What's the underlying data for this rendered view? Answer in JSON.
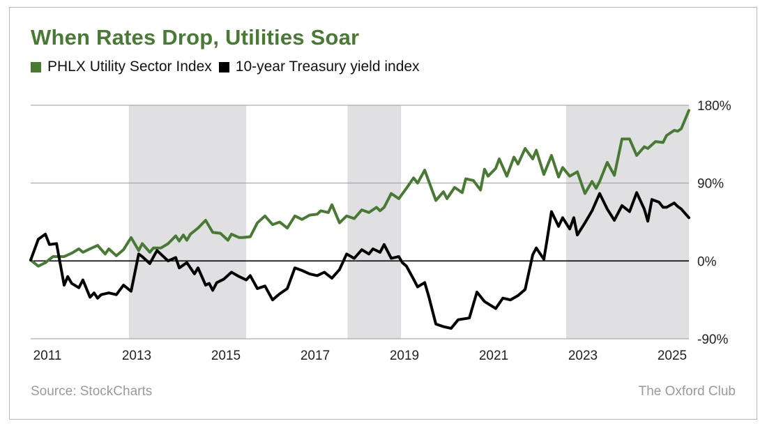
{
  "chart_data": {
    "type": "line",
    "title": "When Rates Drop, Utilities Soar",
    "ylim": [
      -90,
      180
    ],
    "xlim": [
      2011,
      2025.75
    ],
    "y_ticks": [
      "180%",
      "90%",
      "0%",
      "-90%"
    ],
    "y_tick_values": [
      180,
      90,
      0,
      -90
    ],
    "x_ticks": [
      "2011",
      "2013",
      "2015",
      "2017",
      "2019",
      "2021",
      "2023",
      "2025"
    ],
    "x_tick_values": [
      2011,
      2013,
      2015,
      2017,
      2019,
      2021,
      2023,
      2025
    ],
    "shaded_periods": [
      [
        2013.2,
        2015.83
      ],
      [
        2018.1,
        2019.3
      ],
      [
        2023.0,
        2025.75
      ]
    ],
    "series": [
      {
        "name": "PHLX Utility Sector Index",
        "color": "#487a34",
        "x": [
          2011.0,
          2011.17,
          2011.33,
          2011.5,
          2011.58,
          2011.75,
          2011.92,
          2012.08,
          2012.17,
          2012.33,
          2012.5,
          2012.67,
          2012.75,
          2012.92,
          2013.08,
          2013.25,
          2013.42,
          2013.5,
          2013.67,
          2013.75,
          2013.92,
          2014.08,
          2014.25,
          2014.33,
          2014.42,
          2014.5,
          2014.58,
          2014.75,
          2014.92,
          2015.08,
          2015.25,
          2015.42,
          2015.5,
          2015.67,
          2015.75,
          2015.92,
          2016.08,
          2016.25,
          2016.42,
          2016.58,
          2016.75,
          2016.92,
          2017.08,
          2017.25,
          2017.42,
          2017.5,
          2017.67,
          2017.75,
          2017.92,
          2018.08,
          2018.25,
          2018.42,
          2018.58,
          2018.75,
          2018.83,
          2018.92,
          2019.08,
          2019.25,
          2019.42,
          2019.58,
          2019.67,
          2019.83,
          2020.08,
          2020.25,
          2020.33,
          2020.5,
          2020.67,
          2020.75,
          2020.92,
          2021.08,
          2021.17,
          2021.25,
          2021.42,
          2021.5,
          2021.67,
          2021.83,
          2021.92,
          2022.08,
          2022.25,
          2022.33,
          2022.5,
          2022.67,
          2022.83,
          2022.92,
          2023.08,
          2023.25,
          2023.42,
          2023.58,
          2023.67,
          2023.75,
          2023.92,
          2024.08,
          2024.25,
          2024.42,
          2024.58,
          2024.75,
          2024.83,
          2025.0,
          2025.17,
          2025.25,
          2025.42,
          2025.5,
          2025.58,
          2025.75
        ],
        "values": [
          1,
          -6,
          -2,
          5,
          5,
          5,
          9,
          14,
          10,
          14,
          18,
          8,
          14,
          6,
          13,
          27,
          12,
          20,
          10,
          15,
          15,
          20,
          29,
          23,
          30,
          24,
          31,
          38,
          47,
          33,
          32,
          24,
          31,
          27,
          27,
          28,
          44,
          52,
          42,
          45,
          38,
          52,
          48,
          53,
          54,
          58,
          56,
          65,
          44,
          52,
          49,
          59,
          56,
          62,
          58,
          62,
          78,
          72,
          84,
          96,
          90,
          105,
          70,
          80,
          72,
          85,
          79,
          95,
          93,
          82,
          106,
          98,
          107,
          118,
          98,
          120,
          112,
          130,
          118,
          128,
          100,
          122,
          97,
          108,
          98,
          103,
          78,
          92,
          84,
          92,
          114,
          99,
          141,
          141,
          122,
          132,
          130,
          138,
          137,
          145,
          151,
          150,
          153,
          174
        ]
      },
      {
        "name": "10-year Treasury yield index",
        "color": "#000000",
        "x": [
          2011.0,
          2011.17,
          2011.33,
          2011.42,
          2011.58,
          2011.75,
          2011.83,
          2011.92,
          2012.08,
          2012.17,
          2012.33,
          2012.42,
          2012.5,
          2012.58,
          2012.75,
          2012.92,
          2013.08,
          2013.25,
          2013.42,
          2013.5,
          2013.67,
          2013.83,
          2014.08,
          2014.25,
          2014.33,
          2014.5,
          2014.67,
          2014.75,
          2014.92,
          2015.0,
          2015.08,
          2015.17,
          2015.33,
          2015.5,
          2015.67,
          2015.83,
          2015.92,
          2016.08,
          2016.25,
          2016.42,
          2016.58,
          2016.75,
          2016.92,
          2017.08,
          2017.25,
          2017.42,
          2017.58,
          2017.75,
          2017.92,
          2018.08,
          2018.25,
          2018.42,
          2018.58,
          2018.67,
          2018.83,
          2018.92,
          2019.08,
          2019.25,
          2019.33,
          2019.42,
          2019.58,
          2019.67,
          2019.83,
          2019.92,
          2020.08,
          2020.25,
          2020.42,
          2020.58,
          2020.83,
          2021.0,
          2021.17,
          2021.42,
          2021.58,
          2021.75,
          2021.92,
          2022.08,
          2022.25,
          2022.33,
          2022.5,
          2022.58,
          2022.67,
          2022.83,
          2022.92,
          2023.08,
          2023.17,
          2023.25,
          2023.42,
          2023.58,
          2023.75,
          2023.92,
          2024.08,
          2024.25,
          2024.42,
          2024.58,
          2024.75,
          2024.83,
          2024.92,
          2025.08,
          2025.17,
          2025.25,
          2025.42,
          2025.5,
          2025.58,
          2025.75
        ],
        "values": [
          1,
          25,
          31,
          19,
          20,
          -28,
          -18,
          -26,
          -31,
          -22,
          -42,
          -37,
          -43,
          -39,
          -37,
          -39,
          -28,
          -35,
          8,
          5,
          -3,
          12,
          0,
          4,
          -8,
          -2,
          -15,
          -8,
          -28,
          -26,
          -34,
          -25,
          -21,
          -13,
          -18,
          -22,
          -17,
          -32,
          -29,
          -45,
          -38,
          -32,
          -8,
          -11,
          -15,
          -17,
          -13,
          -20,
          -10,
          8,
          3,
          13,
          8,
          14,
          10,
          19,
          3,
          5,
          -2,
          -6,
          -21,
          -30,
          -25,
          -41,
          -73,
          -76,
          -78,
          -68,
          -66,
          -36,
          -47,
          -55,
          -43,
          -45,
          -40,
          -33,
          7,
          15,
          2,
          27,
          57,
          40,
          50,
          37,
          50,
          30,
          44,
          58,
          78,
          60,
          47,
          64,
          57,
          79,
          60,
          46,
          71,
          68,
          62,
          62,
          67,
          63,
          60,
          50
        ]
      }
    ]
  },
  "legend": {
    "items": [
      {
        "label": "PHLX Utility Sector Index",
        "color": "#487a34"
      },
      {
        "label": "10-year Treasury yield index",
        "color": "#000000"
      }
    ]
  },
  "footer": {
    "source": "Source: StockCharts",
    "brand": "The Oxford Club"
  },
  "colors": {
    "shade": "#e0e0e2",
    "gridline": "#9a9a9a",
    "zero_line": "#000000"
  }
}
